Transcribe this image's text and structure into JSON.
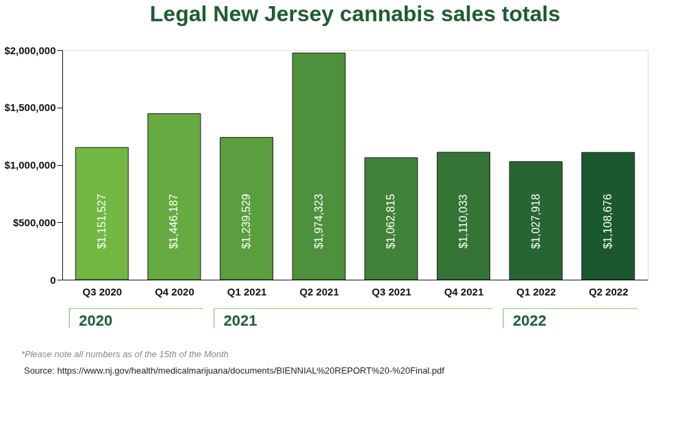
{
  "chart_data": {
    "type": "bar",
    "title": "Legal New Jersey cannabis sales totals",
    "categories": [
      "Q3 2020",
      "Q4 2020",
      "Q1 2021",
      "Q2 2021",
      "Q3 2021",
      "Q4 2021",
      "Q1 2022",
      "Q2 2022"
    ],
    "values": [
      1151527,
      1446187,
      1239529,
      1974323,
      1062815,
      1110033,
      1027918,
      1108676
    ],
    "colors": [
      "#72b843",
      "#66ab41",
      "#5a9e3f",
      "#4e913c",
      "#418239",
      "#347435",
      "#276632",
      "#1a592f"
    ],
    "value_labels": [
      "$1,151,527",
      "$1,446,187",
      "$1,239,529",
      "$1,974,323",
      "$1,062,815",
      "$1,110,033",
      "$1,027,918",
      "$1,108,676"
    ],
    "ylim": [
      0,
      2000000
    ],
    "yticks": [
      0,
      {
        "value": 500000,
        "label": "$500,000"
      },
      {
        "value": 1000000,
        "label": "$1,000,000"
      },
      {
        "value": 1500000,
        "label": "$1,500,000"
      },
      {
        "value": 2000000,
        "label": "$2,000,000"
      }
    ],
    "grid": false,
    "annotations": [
      "2020",
      "2021",
      "2022",
      "*Please note all numbers as of the 15th of the Month",
      "Source: https://www.nj.gov/health/medicalmarijuana/documents/BIENNIAL%20REPORT%20-%20Final.pdf"
    ]
  }
}
